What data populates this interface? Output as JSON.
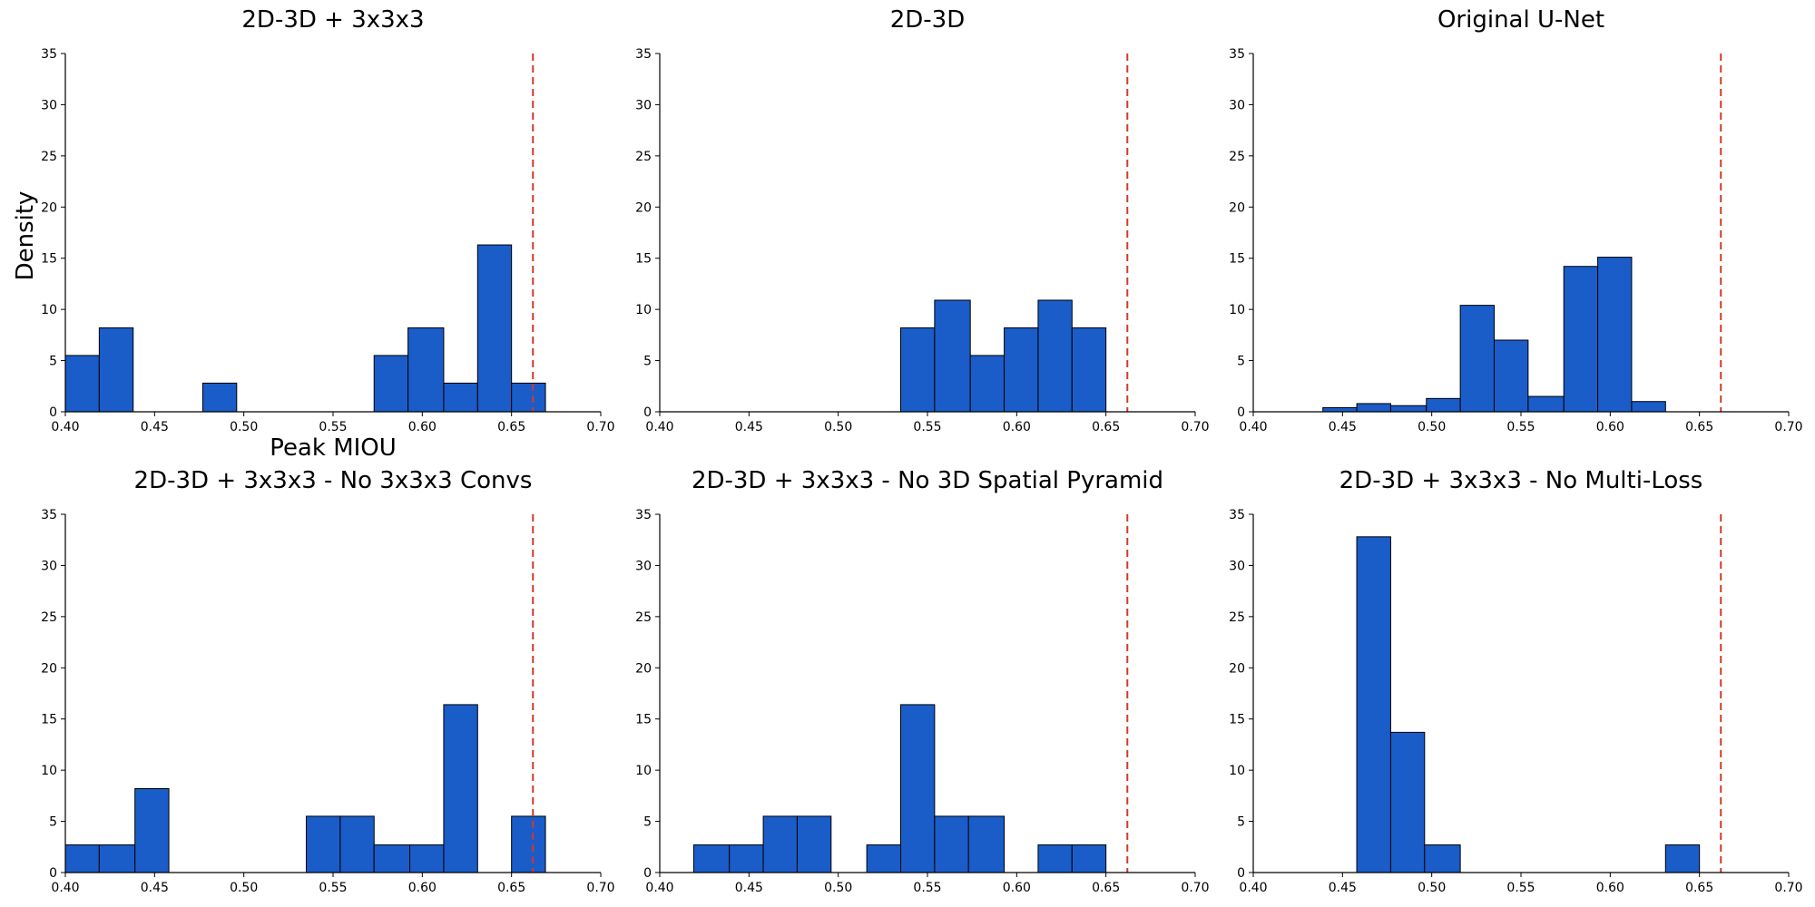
{
  "figure": {
    "ylabel": "Density",
    "xlabel": "Peak MIOU"
  },
  "chart_data": [
    {
      "type": "bar",
      "title": "2D-3D + 3x3x3",
      "xlim": [
        0.4,
        0.7
      ],
      "ylim": [
        0,
        35
      ],
      "xticks": [
        "0.40",
        "0.45",
        "0.50",
        "0.55",
        "0.60",
        "0.65",
        "0.70"
      ],
      "yticks": [
        "0",
        "5",
        "10",
        "15",
        "20",
        "25",
        "30",
        "35"
      ],
      "bins": [
        [
          0.4,
          0.419,
          5.5
        ],
        [
          0.419,
          0.438,
          8.2
        ],
        [
          0.477,
          0.496,
          2.8
        ],
        [
          0.573,
          0.592,
          5.5
        ],
        [
          0.592,
          0.612,
          8.2
        ],
        [
          0.612,
          0.631,
          2.8
        ],
        [
          0.631,
          0.65,
          16.3
        ],
        [
          0.65,
          0.669,
          2.8
        ]
      ],
      "reference_line": 0.662,
      "colors": {
        "bar": "#1a5cc8",
        "edge": "#000000",
        "reference": "#d03a2a"
      }
    },
    {
      "type": "bar",
      "title": "2D-3D",
      "xlim": [
        0.4,
        0.7
      ],
      "ylim": [
        0,
        35
      ],
      "xticks": [
        "0.40",
        "0.45",
        "0.50",
        "0.55",
        "0.60",
        "0.65",
        "0.70"
      ],
      "yticks": [
        "0",
        "5",
        "10",
        "15",
        "20",
        "25",
        "30",
        "35"
      ],
      "bins": [
        [
          0.535,
          0.554,
          8.2
        ],
        [
          0.554,
          0.574,
          10.9
        ],
        [
          0.574,
          0.593,
          5.5
        ],
        [
          0.593,
          0.612,
          8.2
        ],
        [
          0.612,
          0.631,
          10.9
        ],
        [
          0.631,
          0.65,
          8.2
        ]
      ],
      "reference_line": 0.662,
      "colors": {
        "bar": "#1a5cc8",
        "edge": "#000000",
        "reference": "#d03a2a"
      }
    },
    {
      "type": "bar",
      "title": "Original U-Net",
      "xlim": [
        0.4,
        0.7
      ],
      "ylim": [
        0,
        35
      ],
      "xticks": [
        "0.40",
        "0.45",
        "0.50",
        "0.55",
        "0.60",
        "0.65",
        "0.70"
      ],
      "yticks": [
        "0",
        "5",
        "10",
        "15",
        "20",
        "25",
        "30",
        "35"
      ],
      "bins": [
        [
          0.439,
          0.458,
          0.4
        ],
        [
          0.458,
          0.477,
          0.8
        ],
        [
          0.477,
          0.497,
          0.6
        ],
        [
          0.497,
          0.516,
          1.3
        ],
        [
          0.516,
          0.535,
          10.4
        ],
        [
          0.535,
          0.554,
          7.0
        ],
        [
          0.554,
          0.574,
          1.5
        ],
        [
          0.574,
          0.593,
          14.2
        ],
        [
          0.593,
          0.612,
          15.1
        ],
        [
          0.612,
          0.631,
          1.0
        ]
      ],
      "reference_line": 0.662,
      "colors": {
        "bar": "#1a5cc8",
        "edge": "#000000",
        "reference": "#d03a2a"
      }
    },
    {
      "type": "bar",
      "title": "2D-3D + 3x3x3 - No 3x3x3 Convs",
      "xlim": [
        0.4,
        0.7
      ],
      "ylim": [
        0,
        35
      ],
      "xticks": [
        "0.40",
        "0.45",
        "0.50",
        "0.55",
        "0.60",
        "0.65",
        "0.70"
      ],
      "yticks": [
        "0",
        "5",
        "10",
        "15",
        "20",
        "25",
        "30",
        "35"
      ],
      "bins": [
        [
          0.4,
          0.419,
          2.7
        ],
        [
          0.419,
          0.439,
          2.7
        ],
        [
          0.439,
          0.458,
          8.2
        ],
        [
          0.535,
          0.554,
          5.5
        ],
        [
          0.554,
          0.573,
          5.5
        ],
        [
          0.573,
          0.593,
          2.7
        ],
        [
          0.593,
          0.612,
          2.7
        ],
        [
          0.612,
          0.631,
          16.4
        ],
        [
          0.65,
          0.669,
          5.5
        ]
      ],
      "reference_line": 0.662,
      "colors": {
        "bar": "#1a5cc8",
        "edge": "#000000",
        "reference": "#d03a2a"
      }
    },
    {
      "type": "bar",
      "title": "2D-3D + 3x3x3 - No 3D Spatial Pyramid",
      "xlim": [
        0.4,
        0.7
      ],
      "ylim": [
        0,
        35
      ],
      "xticks": [
        "0.40",
        "0.45",
        "0.50",
        "0.55",
        "0.60",
        "0.65",
        "0.70"
      ],
      "yticks": [
        "0",
        "5",
        "10",
        "15",
        "20",
        "25",
        "30",
        "35"
      ],
      "bins": [
        [
          0.419,
          0.439,
          2.7
        ],
        [
          0.439,
          0.458,
          2.7
        ],
        [
          0.458,
          0.477,
          5.5
        ],
        [
          0.477,
          0.496,
          5.5
        ],
        [
          0.516,
          0.535,
          2.7
        ],
        [
          0.535,
          0.554,
          16.4
        ],
        [
          0.554,
          0.573,
          5.5
        ],
        [
          0.573,
          0.593,
          5.5
        ],
        [
          0.612,
          0.631,
          2.7
        ],
        [
          0.631,
          0.65,
          2.7
        ]
      ],
      "reference_line": 0.662,
      "colors": {
        "bar": "#1a5cc8",
        "edge": "#000000",
        "reference": "#d03a2a"
      }
    },
    {
      "type": "bar",
      "title": "2D-3D + 3x3x3 - No Multi-Loss",
      "xlim": [
        0.4,
        0.7
      ],
      "ylim": [
        0,
        35
      ],
      "xticks": [
        "0.40",
        "0.45",
        "0.50",
        "0.55",
        "0.60",
        "0.65",
        "0.70"
      ],
      "yticks": [
        "0",
        "5",
        "10",
        "15",
        "20",
        "25",
        "30",
        "35"
      ],
      "bins": [
        [
          0.458,
          0.477,
          32.8
        ],
        [
          0.477,
          0.496,
          13.7
        ],
        [
          0.496,
          0.516,
          2.7
        ],
        [
          0.631,
          0.65,
          2.7
        ]
      ],
      "reference_line": 0.662,
      "colors": {
        "bar": "#1a5cc8",
        "edge": "#000000",
        "reference": "#d03a2a"
      }
    }
  ]
}
